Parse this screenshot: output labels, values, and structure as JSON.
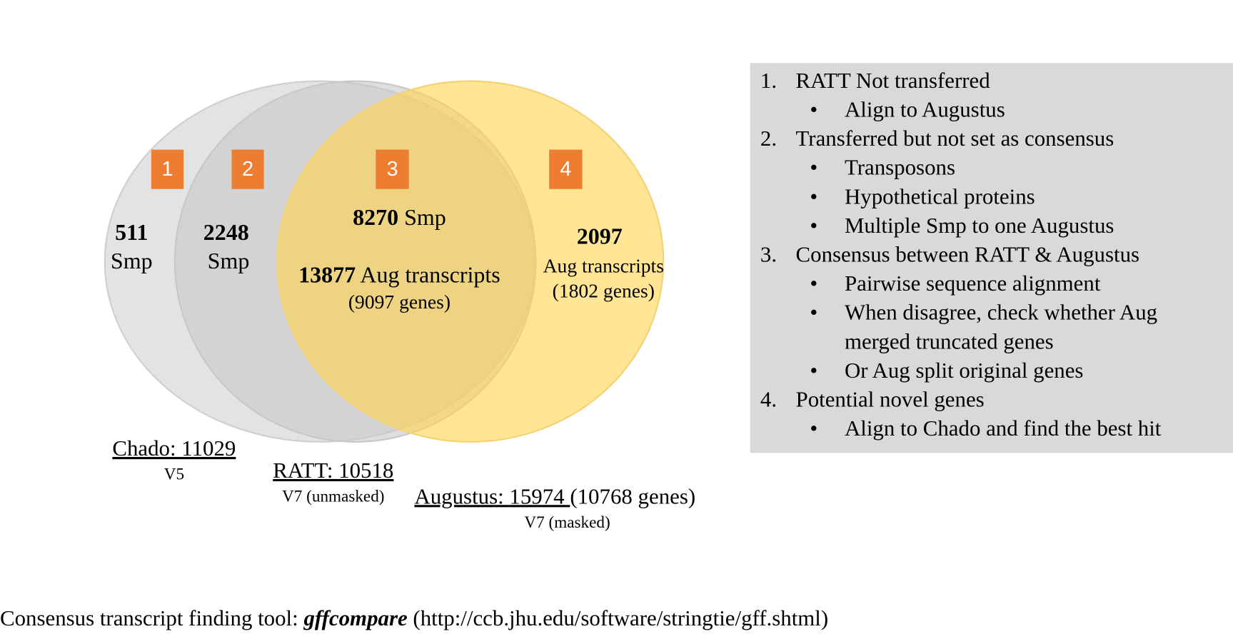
{
  "venn": {
    "sets": [
      {
        "label": "Chado: 11029",
        "version": "V5"
      },
      {
        "label": "RATT: 10518",
        "version": "V7 (unmasked)"
      },
      {
        "label": "Augustus: 15974 ",
        "extra": "(10768 genes)",
        "version": "V7 (masked)"
      }
    ],
    "regions": [
      {
        "marker": "1",
        "count": "511",
        "unit": "Smp"
      },
      {
        "marker": "2",
        "count": "2248",
        "unit": "Smp"
      },
      {
        "marker": "3",
        "smp_count": "8270",
        "smp_unit": " Smp",
        "aug_count": "13877",
        "aug_unit": " Aug transcripts",
        "genes": "(9097 genes)"
      },
      {
        "marker": "4",
        "count": "2097",
        "unit": "Aug transcripts",
        "genes": "(1802 genes)"
      }
    ]
  },
  "notes": [
    {
      "number": "1.",
      "title": "RATT Not transferred",
      "bullets": [
        [
          "Align to Augustus"
        ]
      ]
    },
    {
      "number": "2.",
      "title": "Transferred but not set as consensus",
      "bullets": [
        [
          "Transposons"
        ],
        [
          "Hypothetical proteins"
        ],
        [
          "Multiple Smp to one Augustus"
        ]
      ]
    },
    {
      "number": "3.",
      "title": "Consensus between RATT & Augustus",
      "bullets": [
        [
          "Pairwise sequence alignment"
        ],
        [
          "When disagree, check whether Aug",
          "merged truncated genes"
        ],
        [
          "Or Aug split original genes"
        ]
      ]
    },
    {
      "number": "4.",
      "title": "Potential novel genes",
      "bullets": [
        [
          "Align to Chado and find the best hit"
        ]
      ]
    }
  ],
  "footer": {
    "prefix": "Consensus transcript finding tool: ",
    "tool": "gffcompare",
    "suffix": " (http://ccb.jhu.edu/software/stringtie/gff.shtml)"
  }
}
